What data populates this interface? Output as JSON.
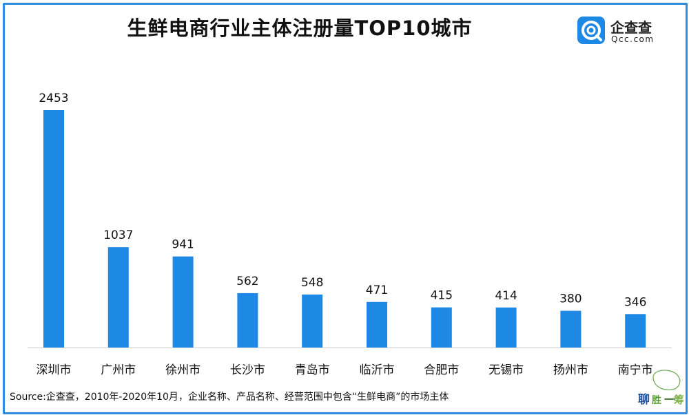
{
  "title": "生鲜电商行业主体注册量TOP10城市",
  "brand": {
    "name": "企查查",
    "domain": "Qcc.com",
    "color": "#1e88e5",
    "icon": "qcc-logo-icon"
  },
  "source": "Source:企查查，2010年-2020年10月，企业名称、产品名称、经营范围中包含“生鲜电商”的市场主体",
  "corner_logo": {
    "text": "聊·胜一筹!",
    "icon": "stamp-logo-icon"
  },
  "chart_data": {
    "type": "bar",
    "categories": [
      "深圳市",
      "广州市",
      "徐州市",
      "长沙市",
      "青岛市",
      "临沂市",
      "合肥市",
      "无锡市",
      "扬州市",
      "南宁市"
    ],
    "values": [
      2453,
      1037,
      941,
      562,
      548,
      471,
      415,
      414,
      380,
      346
    ],
    "title": "生鲜电商行业主体注册量TOP10城市",
    "xlabel": "",
    "ylabel": "",
    "ylim": [
      0,
      2453
    ],
    "grid": false,
    "bar_color": "#1e88e5",
    "data_labels": true
  }
}
